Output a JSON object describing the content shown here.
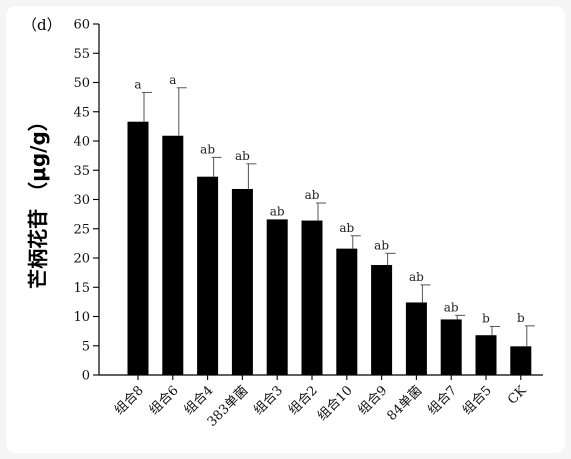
{
  "chart_data": {
    "type": "bar",
    "panel_label": "（d）",
    "ylabel": "芒柄花苷 （μg/g）",
    "xlabel": "",
    "ylim": [
      0,
      60
    ],
    "yticks": [
      0,
      5,
      10,
      15,
      20,
      25,
      30,
      35,
      40,
      45,
      50,
      55,
      60
    ],
    "grid": false,
    "bar_color": "#000000",
    "categories": [
      "组合8",
      "组合6",
      "组合4",
      "383单菌",
      "组合3",
      "组合2",
      "组合10",
      "组合9",
      "84单菌",
      "组合7",
      "组合5",
      "CK"
    ],
    "values": [
      43.3,
      40.9,
      33.9,
      31.8,
      26.6,
      26.4,
      21.6,
      18.8,
      12.4,
      9.5,
      6.8,
      4.9
    ],
    "error": [
      5.0,
      8.2,
      3.3,
      4.3,
      0.0,
      3.0,
      2.2,
      2.0,
      3.0,
      0.7,
      1.5,
      3.5
    ],
    "significance": [
      "a",
      "a",
      "ab",
      "ab",
      "ab",
      "ab",
      "ab",
      "ab",
      "ab",
      "ab",
      "b",
      "b"
    ]
  }
}
